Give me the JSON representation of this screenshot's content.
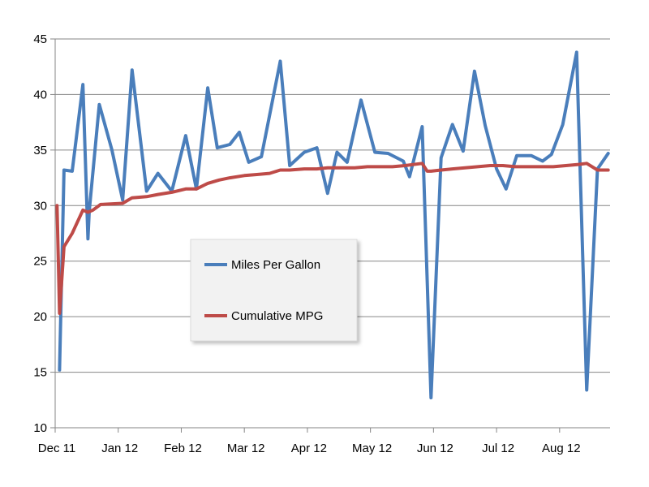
{
  "chart_data": {
    "type": "line",
    "title": "",
    "xlabel": "",
    "ylabel": "",
    "ylim": [
      10,
      45
    ],
    "yticks": [
      10,
      15,
      20,
      25,
      30,
      35,
      40,
      45
    ],
    "xticks": [
      "Dec 11",
      "Jan 12",
      "Feb 12",
      "Mar 12",
      "Apr 12",
      "May 12",
      "Jun 12",
      "Jul 12",
      "Aug 12"
    ],
    "xlim": [
      0,
      8.8
    ],
    "grid": "horizontal",
    "legend_position": "center",
    "series": [
      {
        "name": "Miles Per Gallon",
        "color": "#4A7EBB",
        "x": [
          0.07,
          0.14,
          0.27,
          0.44,
          0.52,
          0.54,
          0.7,
          0.9,
          1.07,
          1.22,
          1.45,
          1.63,
          1.85,
          2.07,
          2.24,
          2.42,
          2.57,
          2.77,
          2.92,
          3.07,
          3.27,
          3.57,
          3.72,
          3.95,
          4.15,
          4.32,
          4.47,
          4.63,
          4.85,
          5.07,
          5.28,
          5.52,
          5.62,
          5.82,
          5.96,
          6.12,
          6.3,
          6.47,
          6.65,
          6.82,
          7.0,
          7.15,
          7.32,
          7.55,
          7.73,
          7.87,
          8.05,
          8.27,
          8.43,
          8.6,
          8.77
        ],
        "y": [
          15.2,
          33.2,
          33.1,
          40.9,
          27.0,
          29.5,
          39.1,
          35.0,
          30.5,
          42.2,
          31.3,
          32.9,
          31.3,
          36.3,
          31.5,
          40.6,
          35.2,
          35.5,
          36.6,
          33.9,
          34.4,
          43.0,
          33.6,
          34.8,
          35.2,
          31.1,
          34.8,
          33.9,
          39.5,
          34.8,
          34.7,
          34.0,
          32.6,
          37.1,
          12.7,
          34.3,
          37.3,
          34.9,
          42.1,
          37.2,
          33.3,
          31.5,
          34.5,
          34.5,
          34.0,
          34.6,
          37.3,
          43.8,
          13.4,
          33.3,
          34.7
        ]
      },
      {
        "name": "Cumulative MPG",
        "color": "#BE4B48",
        "x": [
          0.03,
          0.07,
          0.14,
          0.27,
          0.44,
          0.52,
          0.6,
          0.72,
          1.07,
          1.22,
          1.45,
          1.63,
          1.85,
          2.07,
          2.24,
          2.42,
          2.6,
          2.77,
          3.0,
          3.2,
          3.4,
          3.57,
          3.72,
          3.95,
          4.15,
          4.32,
          4.55,
          4.75,
          4.95,
          5.15,
          5.35,
          5.55,
          5.82,
          5.9,
          5.96,
          6.12,
          6.3,
          6.5,
          6.7,
          6.9,
          7.1,
          7.3,
          7.5,
          7.7,
          7.9,
          8.1,
          8.3,
          8.43,
          8.6,
          8.77
        ],
        "y": [
          30.0,
          20.3,
          26.3,
          27.5,
          29.6,
          29.4,
          29.6,
          30.1,
          30.2,
          30.7,
          30.8,
          31.0,
          31.2,
          31.5,
          31.5,
          32.0,
          32.3,
          32.5,
          32.7,
          32.8,
          32.9,
          33.2,
          33.2,
          33.3,
          33.3,
          33.4,
          33.4,
          33.4,
          33.5,
          33.5,
          33.5,
          33.6,
          33.8,
          33.1,
          33.1,
          33.2,
          33.3,
          33.4,
          33.5,
          33.6,
          33.6,
          33.5,
          33.5,
          33.5,
          33.5,
          33.6,
          33.7,
          33.8,
          33.2,
          33.2
        ]
      }
    ]
  }
}
